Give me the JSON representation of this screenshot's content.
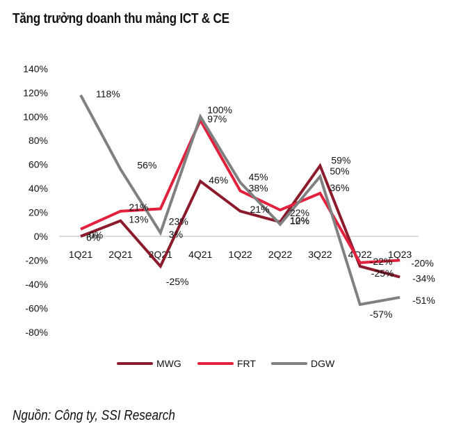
{
  "title": "Tăng trưởng doanh thu mảng ICT & CE",
  "source": "Nguồn: Công ty, SSI Research",
  "chart_data": {
    "type": "line",
    "title": "Tăng trưởng doanh thu mảng ICT & CE",
    "xlabel": "",
    "ylabel": "",
    "categories": [
      "1Q21",
      "2Q21",
      "3Q21",
      "4Q21",
      "1Q22",
      "2Q22",
      "3Q22",
      "4Q22",
      "1Q23"
    ],
    "yticks": [
      "140%",
      "120%",
      "100%",
      "80%",
      "60%",
      "40%",
      "20%",
      "0%",
      "-20%",
      "-40%",
      "-60%",
      "-80%"
    ],
    "ylim": [
      -80,
      140
    ],
    "grid": false,
    "legend": "bottom",
    "series": [
      {
        "name": "MWG",
        "color": "#8b1a2b",
        "values": [
          0,
          13,
          -25,
          46,
          21,
          12,
          59,
          -25,
          -34
        ],
        "labels": [
          "0%",
          "13%",
          "-25%",
          "46%",
          "21%",
          "12%",
          "59%",
          "-25%",
          "-34%"
        ]
      },
      {
        "name": "FRT",
        "color": "#e0203c",
        "values": [
          6,
          21,
          23,
          97,
          38,
          22,
          36,
          -22,
          -20
        ],
        "labels": [
          "6%",
          "21%",
          "23%",
          "97%",
          "38%",
          "22%",
          "36%",
          "-22%",
          "-20%"
        ]
      },
      {
        "name": "DGW",
        "color": "#808080",
        "values": [
          118,
          56,
          3,
          100,
          45,
          10,
          50,
          -57,
          -51
        ],
        "labels": [
          "118%",
          "56%",
          "3%",
          "100%",
          "45%",
          "10%",
          "50%",
          "-57%",
          "-51%"
        ]
      }
    ]
  }
}
